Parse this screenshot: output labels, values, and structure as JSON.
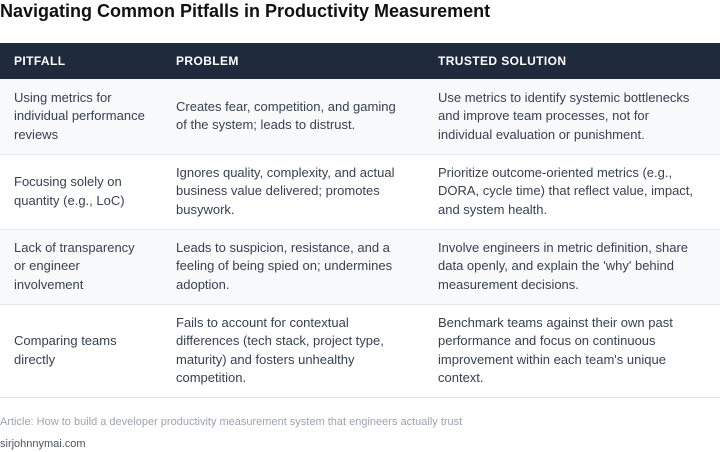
{
  "title": "Navigating Common Pitfalls in Productivity Measurement",
  "table": {
    "headers": [
      "PITFALL",
      "PROBLEM",
      "TRUSTED SOLUTION"
    ],
    "rows": [
      {
        "pitfall": "Using metrics for individual performance reviews",
        "problem": "Creates fear, competition, and gaming of the system; leads to distrust.",
        "solution": "Use metrics to identify systemic bottlenecks and improve team processes, not for individual evaluation or punishment."
      },
      {
        "pitfall": "Focusing solely on quantity (e.g., LoC)",
        "problem": "Ignores quality, complexity, and actual business value delivered; promotes busywork.",
        "solution": "Prioritize outcome-oriented metrics (e.g., DORA, cycle time) that reflect value, impact, and system health."
      },
      {
        "pitfall": "Lack of transparency or engineer involvement",
        "problem": "Leads to suspicion, resistance, and a feeling of being spied on; undermines adoption.",
        "solution": "Involve engineers in metric definition, share data openly, and explain the 'why' behind measurement decisions."
      },
      {
        "pitfall": "Comparing teams directly",
        "problem": "Fails to account for contextual differences (tech stack, project type, maturity) and fosters unhealthy competition.",
        "solution": "Benchmark teams against their own past performance and focus on continuous improvement within each team's unique context."
      }
    ]
  },
  "footer": {
    "source": "Article: How to build a developer productivity measurement system that engineers actually trust",
    "domain": "sirjohnnymai.com"
  }
}
